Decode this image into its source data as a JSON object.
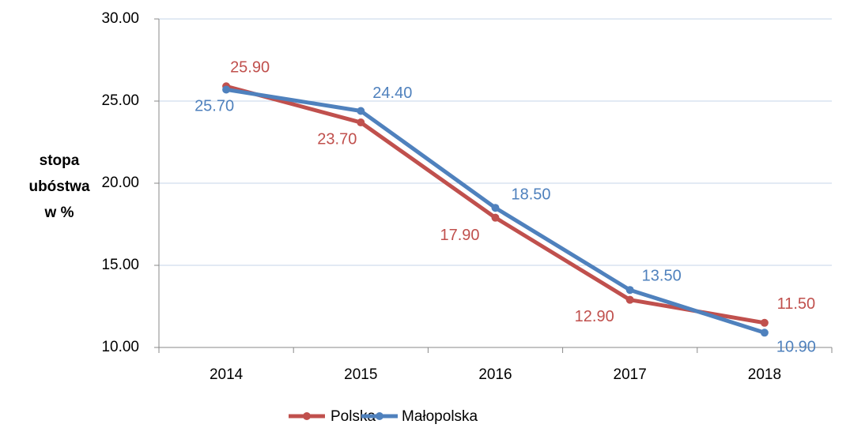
{
  "chart_data": {
    "type": "line",
    "ylabel": [
      "stopa",
      "ubóstwa",
      "w %"
    ],
    "categories": [
      "2014",
      "2015",
      "2016",
      "2017",
      "2018"
    ],
    "series": [
      {
        "name": "Polska",
        "color": "#c0504d",
        "values": [
          25.9,
          23.7,
          17.9,
          12.9,
          11.5
        ],
        "value_labels": [
          "25.90",
          "23.70",
          "17.90",
          "12.90",
          "11.50"
        ]
      },
      {
        "name": "Małopolska",
        "color": "#4f81bd",
        "values": [
          25.7,
          24.4,
          18.5,
          13.5,
          10.9
        ],
        "value_labels": [
          "25.70",
          "24.40",
          "18.50",
          "13.50",
          "10.90"
        ]
      }
    ],
    "ylim": [
      10,
      30
    ],
    "yticks": [
      {
        "value": 10,
        "label": "10.00"
      },
      {
        "value": 15,
        "label": "15.00"
      },
      {
        "value": 20,
        "label": "20.00"
      },
      {
        "value": 25,
        "label": "25.00"
      },
      {
        "value": 30,
        "label": "30.00"
      }
    ],
    "grid": true,
    "legend": "bottom"
  }
}
